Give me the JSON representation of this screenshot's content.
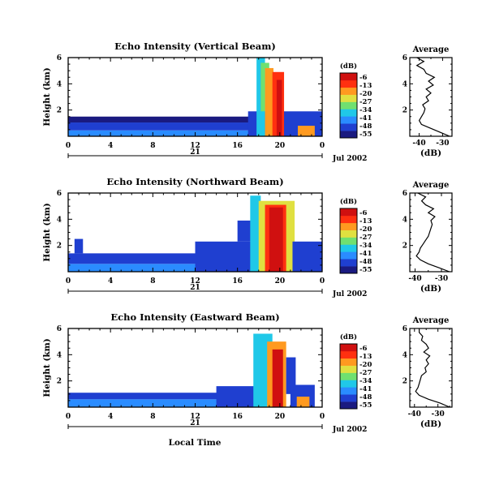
{
  "figure": {
    "xlabel_bottom": "Local Time",
    "date_label": "Jul 2002"
  },
  "chart_data": [
    {
      "type": "heatmap",
      "title": "Echo Intensity (Vertical Beam)",
      "ylabel": "Height (km)",
      "x_ticks": [
        "0",
        "4",
        "8",
        "12",
        "16",
        "20",
        "0"
      ],
      "xlim": [
        0,
        24
      ],
      "day_label": "21",
      "ylim": [
        0,
        6
      ],
      "y_ticks": [
        {
          "v": 2,
          "label": "2"
        },
        {
          "v": 4,
          "label": "4"
        },
        {
          "v": 6,
          "label": "6"
        }
      ],
      "colorbar": {
        "unit": "(dB)",
        "levels": [
          "-6",
          "-13",
          "-20",
          "-27",
          "-34",
          "-41",
          "-48",
          "-55"
        ],
        "range": [
          -55,
          -6
        ],
        "colors": [
          "#1a1a80",
          "#1f3fd0",
          "#2a8cff",
          "#20c8e8",
          "#70e070",
          "#e0e040",
          "#ff9a20",
          "#ff3010",
          "#d01010"
        ]
      },
      "layers": [
        {
          "x": [
            0,
            18
          ],
          "y": [
            0,
            0.45
          ],
          "db": -41
        },
        {
          "x": [
            0,
            18
          ],
          "y": [
            0.45,
            1.05
          ],
          "db": -48
        },
        {
          "x": [
            0,
            18
          ],
          "y": [
            1.05,
            1.5
          ],
          "db": -53
        },
        {
          "x": [
            17,
            24
          ],
          "y": [
            0,
            1.9
          ],
          "db": -45
        },
        {
          "x": [
            17.8,
            18.6
          ],
          "y": [
            0,
            6
          ],
          "db": -34
        },
        {
          "x": [
            18.2,
            19
          ],
          "y": [
            1.9,
            5.6
          ],
          "db": -30
        },
        {
          "x": [
            18.6,
            19.4
          ],
          "y": [
            0,
            5.2
          ],
          "db": -20
        },
        {
          "x": [
            19.3,
            20.4
          ],
          "y": [
            0,
            4.9
          ],
          "db": -12
        },
        {
          "x": [
            19.7,
            20.2
          ],
          "y": [
            0,
            4.3
          ],
          "db": -6
        },
        {
          "x": [
            21.7,
            23.3
          ],
          "y": [
            0,
            0.8
          ],
          "db": -20
        }
      ],
      "average": {
        "title": "Average",
        "xlabel": "(dB)",
        "x_ticks": [
          {
            "v": -40,
            "label": "-40"
          },
          {
            "v": -30,
            "label": "-30"
          }
        ],
        "xlim": [
          -44,
          -26
        ],
        "y_ticks": [
          {
            "v": 2,
            "label": "2"
          },
          {
            "v": 4,
            "label": "4"
          },
          {
            "v": 6,
            "label": "6"
          }
        ],
        "ylim": [
          0,
          6
        ],
        "height_km": [
          0,
          0.3,
          0.6,
          0.9,
          1.2,
          1.5,
          1.8,
          2.1,
          2.4,
          2.7,
          3.0,
          3.3,
          3.6,
          3.9,
          4.2,
          4.5,
          4.8,
          5.1,
          5.4,
          5.7,
          6.0
        ],
        "db": [
          -27,
          -31,
          -35,
          -39,
          -40,
          -39,
          -38,
          -37.5,
          -38.5,
          -36,
          -37,
          -35,
          -37,
          -34,
          -36,
          -33.5,
          -37,
          -38,
          -41,
          -38,
          -41
        ]
      }
    },
    {
      "type": "heatmap",
      "title": "Echo Intensity (Northward Beam)",
      "ylabel": "Height (km)",
      "x_ticks": [
        "0",
        "4",
        "8",
        "12",
        "16",
        "20",
        "0"
      ],
      "xlim": [
        0,
        24
      ],
      "day_label": "21",
      "ylim": [
        0,
        6
      ],
      "y_ticks": [
        {
          "v": 2,
          "label": "2"
        },
        {
          "v": 4,
          "label": "4"
        },
        {
          "v": 6,
          "label": "6"
        }
      ],
      "colorbar": {
        "unit": "(dB)",
        "levels": [
          "-6",
          "-13",
          "-20",
          "-27",
          "-34",
          "-41",
          "-48",
          "-55"
        ],
        "range": [
          -55,
          -6
        ],
        "colors": [
          "#1a1a80",
          "#1f3fd0",
          "#2a8cff",
          "#20c8e8",
          "#70e070",
          "#e0e040",
          "#ff9a20",
          "#ff3010",
          "#d01010"
        ]
      },
      "layers": [
        {
          "x": [
            0,
            16
          ],
          "y": [
            0,
            0.6
          ],
          "db": -41
        },
        {
          "x": [
            0,
            16
          ],
          "y": [
            0.6,
            1.4
          ],
          "db": -48
        },
        {
          "x": [
            0.6,
            1.4
          ],
          "y": [
            1.4,
            2.5
          ],
          "db": -48
        },
        {
          "x": [
            12,
            18
          ],
          "y": [
            0,
            2.3
          ],
          "db": -45
        },
        {
          "x": [
            16,
            18
          ],
          "y": [
            2.3,
            3.9
          ],
          "db": -48
        },
        {
          "x": [
            17.2,
            18.2
          ],
          "y": [
            0,
            5.8
          ],
          "db": -34
        },
        {
          "x": [
            18,
            21.4
          ],
          "y": [
            0,
            5.4
          ],
          "db": -27
        },
        {
          "x": [
            18.6,
            20.6
          ],
          "y": [
            0,
            5.1
          ],
          "db": -13
        },
        {
          "x": [
            19,
            20.3
          ],
          "y": [
            0,
            4.9
          ],
          "db": -6
        },
        {
          "x": [
            21.2,
            24
          ],
          "y": [
            0,
            2.3
          ],
          "db": -45
        }
      ],
      "average": {
        "title": "Average",
        "xlabel": "(dB)",
        "x_ticks": [
          {
            "v": -40,
            "label": "-40"
          },
          {
            "v": -30,
            "label": "-30"
          }
        ],
        "xlim": [
          -42,
          -26
        ],
        "y_ticks": [
          {
            "v": 2,
            "label": "2"
          },
          {
            "v": 4,
            "label": "4"
          },
          {
            "v": 6,
            "label": "6"
          }
        ],
        "ylim": [
          0,
          6
        ],
        "height_km": [
          0,
          0.3,
          0.6,
          0.9,
          1.2,
          1.5,
          1.8,
          2.1,
          2.4,
          2.7,
          3.0,
          3.3,
          3.6,
          3.9,
          4.2,
          4.5,
          4.8,
          5.1,
          5.4,
          5.7,
          6.0
        ],
        "db": [
          -27,
          -31,
          -35,
          -38,
          -39.5,
          -38.5,
          -38,
          -37,
          -36,
          -35,
          -34.5,
          -34,
          -33.5,
          -34,
          -32.5,
          -35,
          -33,
          -36,
          -37.5,
          -36,
          -39
        ]
      }
    },
    {
      "type": "heatmap",
      "title": "Echo Intensity (Eastward Beam)",
      "ylabel": "Height (km)",
      "x_ticks": [
        "0",
        "4",
        "8",
        "12",
        "16",
        "20",
        "0"
      ],
      "xlim": [
        0,
        24
      ],
      "day_label": "21",
      "ylim": [
        0,
        6
      ],
      "y_ticks": [
        {
          "v": 2,
          "label": "2"
        },
        {
          "v": 4,
          "label": "4"
        },
        {
          "v": 6,
          "label": "6"
        }
      ],
      "colorbar": {
        "unit": "(dB)",
        "levels": [
          "-6",
          "-13",
          "-20",
          "-27",
          "-34",
          "-41",
          "-48",
          "-55"
        ],
        "range": [
          -55,
          -6
        ],
        "colors": [
          "#1a1a80",
          "#1f3fd0",
          "#2a8cff",
          "#20c8e8",
          "#70e070",
          "#e0e040",
          "#ff9a20",
          "#ff3010",
          "#d01010"
        ]
      },
      "layers": [
        {
          "x": [
            0,
            17
          ],
          "y": [
            0,
            0.6
          ],
          "db": -41
        },
        {
          "x": [
            0,
            17
          ],
          "y": [
            0.6,
            1.1
          ],
          "db": -48
        },
        {
          "x": [
            14,
            18
          ],
          "y": [
            0,
            1.6
          ],
          "db": -45
        },
        {
          "x": [
            17.5,
            19.3
          ],
          "y": [
            0,
            5.6
          ],
          "db": -34
        },
        {
          "x": [
            18.8,
            20.6
          ],
          "y": [
            0,
            5.0
          ],
          "db": -20
        },
        {
          "x": [
            19.3,
            20.3
          ],
          "y": [
            0,
            4.4
          ],
          "db": -6
        },
        {
          "x": [
            20.6,
            21.5
          ],
          "y": [
            1.0,
            3.8
          ],
          "db": -48
        },
        {
          "x": [
            21.0,
            23.3
          ],
          "y": [
            0,
            1.7
          ],
          "db": -45
        },
        {
          "x": [
            21.6,
            22.8
          ],
          "y": [
            0,
            0.8
          ],
          "db": -20
        }
      ],
      "average": {
        "title": "Average",
        "xlabel": "(dB)",
        "x_ticks": [
          {
            "v": -40,
            "label": "-40"
          },
          {
            "v": -30,
            "label": "-30"
          }
        ],
        "xlim": [
          -42,
          -24
        ],
        "y_ticks": [
          {
            "v": 2,
            "label": "2"
          },
          {
            "v": 4,
            "label": "4"
          },
          {
            "v": 6,
            "label": "6"
          }
        ],
        "ylim": [
          0,
          6
        ],
        "height_km": [
          0,
          0.3,
          0.6,
          0.9,
          1.2,
          1.5,
          1.8,
          2.1,
          2.4,
          2.7,
          3.0,
          3.3,
          3.6,
          3.9,
          4.2,
          4.5,
          4.8,
          5.1,
          5.4,
          5.7,
          6.0
        ],
        "db": [
          -25,
          -29,
          -34,
          -38,
          -39.5,
          -38.5,
          -38,
          -37.5,
          -37,
          -35,
          -35.5,
          -34,
          -35,
          -33.5,
          -36,
          -34,
          -35,
          -37,
          -36.5,
          -38,
          -38
        ]
      }
    }
  ]
}
